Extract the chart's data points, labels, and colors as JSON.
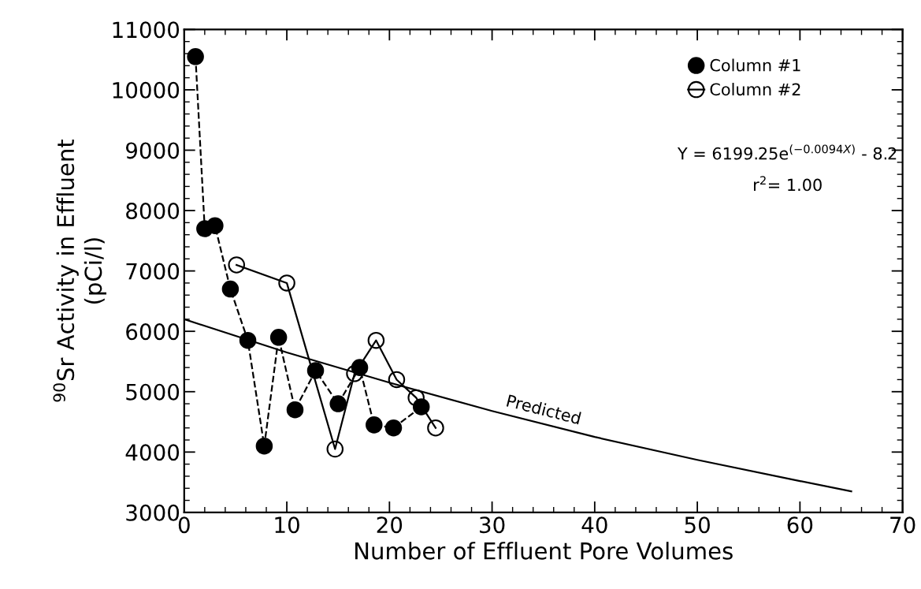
{
  "chart_data": {
    "type": "line",
    "xlabel": "Number of Effluent Pore Volumes",
    "ylabel": "$^{90}$Sr Activity in Effluent\n(pCi/l)",
    "xlim": [
      0,
      70
    ],
    "xticks": [
      0,
      10,
      20,
      30,
      40,
      50,
      60,
      70
    ],
    "ylim": [
      3000,
      11000
    ],
    "yticks": [
      3000,
      4000,
      5000,
      6000,
      7000,
      8000,
      9000,
      10000,
      11000
    ],
    "grid": false,
    "legend": "top right",
    "annotations": [
      "Y = 6199.25e$^{(−0.0094X)}$ - 8.2",
      "r$^{2}$= 1.00"
    ],
    "series": [
      {
        "name": "Column #1",
        "color": "#000000",
        "marker": "circle",
        "line_style": "dashed",
        "x": [
          1.1,
          2.0,
          3.0,
          4.5,
          6.2,
          7.8,
          9.2,
          10.8,
          12.8,
          15.0,
          17.1,
          18.5,
          20.4,
          23.1
        ],
        "values": [
          10550,
          7700,
          7750,
          6700,
          5850,
          4100,
          5900,
          4700,
          5350,
          4800,
          5400,
          4450,
          4400,
          4750
        ]
      },
      {
        "name": "Column #2",
        "color": "#000000",
        "marker": "open circle",
        "line_style": "solid",
        "x": [
          5.1,
          10.0,
          14.7,
          16.6,
          18.7,
          20.7,
          22.6,
          24.5
        ],
        "values": [
          7100,
          6800,
          4050,
          5300,
          5850,
          5200,
          4900,
          4400
        ]
      },
      {
        "name": "Predicted",
        "color": "#000000",
        "marker": "none",
        "line_style": "solid",
        "x": [
          0,
          10,
          20,
          30,
          40,
          50,
          60,
          65
        ],
        "values": [
          6200,
          5650,
          5150,
          4680,
          4250,
          3870,
          3520,
          3350
        ]
      }
    ]
  }
}
